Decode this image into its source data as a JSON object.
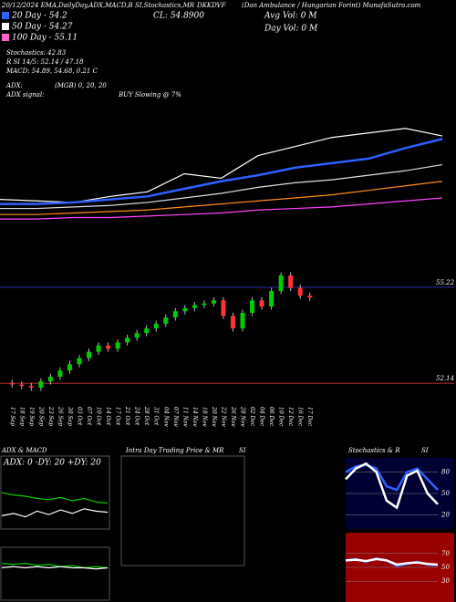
{
  "header": {
    "top_line": "20/12/2024 EMA,DailyDay,ADX,MACD,B",
    "top_mid": "SI,Stochastics,MR",
    "top_symbol": "DKKDVF",
    "top_right": "(Dan Ambulance / Hungarian Forint) MunafaSutra.com",
    "close": "CL: 54.8900",
    "avg_vol": "Avg Vol: 0 M",
    "day_vol": "Day Vol: 0 M"
  },
  "legend": [
    {
      "label": "20 Day - 54.2",
      "color": "#2f5fff"
    },
    {
      "label": "50 Day - 54.27",
      "color": "#ffffff"
    },
    {
      "label": "100 Day - 55.11",
      "color": "#ff66cc"
    }
  ],
  "stats": [
    "Stochastics: 42.83",
    "R SI 14/5: 52.14 / 47.18",
    "MACD: 54.89, 54.68, 0.21 C"
  ],
  "adx": {
    "label": "ADX:",
    "value": "(MGB) 0, 20, 20"
  },
  "signal": {
    "label": "ADX signal:",
    "value": "BUY Slowing @ 7%"
  },
  "panels": {
    "adx_title": "ADX & MACD",
    "adx_box": "ADX: 0  -DY: 20  +DY: 20",
    "intra_title": "Intra Day Trading Price & MR",
    "intra_si": "SI",
    "stoch_title": "Stochastics & R",
    "stoch_si": "SI"
  },
  "chart_data": [
    {
      "type": "line",
      "categories": [
        null,
        null,
        null,
        null,
        null,
        null,
        null,
        null,
        null,
        null,
        null,
        null,
        null
      ],
      "ylim": [
        49,
        57
      ],
      "series": [
        {
          "color": "#ffffff",
          "values": [
            50.4,
            50.35,
            50.3,
            50.5,
            50.65,
            51.25,
            51.1,
            51.85,
            52.15,
            52.45,
            52.6,
            52.75,
            52.5
          ]
        },
        {
          "color": "#2f5fff",
          "values": [
            50.25,
            50.25,
            50.3,
            50.4,
            50.5,
            50.75,
            51.0,
            51.2,
            51.45,
            51.6,
            51.75,
            52.1,
            52.4
          ]
        },
        {
          "color": "#dddddd",
          "values": [
            50.1,
            50.1,
            50.15,
            50.2,
            50.3,
            50.45,
            50.6,
            50.8,
            50.95,
            51.05,
            51.2,
            51.35,
            51.55
          ]
        },
        {
          "color": "#ff8c1a",
          "values": [
            49.9,
            49.9,
            49.95,
            50.0,
            50.05,
            50.15,
            50.25,
            50.35,
            50.45,
            50.55,
            50.7,
            50.85,
            51.0
          ]
        },
        {
          "color": "#ff44ff",
          "values": [
            49.75,
            49.75,
            49.8,
            49.8,
            49.85,
            49.9,
            49.95,
            50.05,
            50.1,
            50.15,
            50.25,
            50.35,
            50.45
          ]
        }
      ]
    },
    {
      "type": "candlestick",
      "ylim": [
        51.56,
        55.95
      ],
      "up_color": "#00cc00",
      "down_color": "#ff3333",
      "categories": [
        "17 Sep",
        "18 Sep",
        "19 Sep",
        "20 Sep",
        "23 Sep",
        "26 Sep",
        "30 Sep",
        "03 Oct",
        "07 Oct",
        "10 Oct",
        "14 Oct",
        "17 Oct",
        "21 Oct",
        "24 Oct",
        "28 Oct",
        "31 Oct",
        "04 Nov",
        "07 Nov",
        "11 Nov",
        "14 Nov",
        "18 Nov",
        "20 Nov",
        "22 Nov",
        "26 Nov",
        "28 Nov",
        "02 Dec",
        "04 Dec",
        "06 Dec",
        "10 Dec",
        "12 Dec",
        "16 Dec",
        "17 Dec"
      ],
      "open": [
        52.15,
        52.1,
        52.05,
        52.0,
        52.2,
        52.35,
        52.55,
        52.75,
        52.95,
        53.15,
        53.35,
        53.25,
        53.45,
        53.6,
        53.75,
        53.9,
        54.05,
        54.25,
        54.45,
        54.55,
        54.65,
        54.7,
        54.8,
        54.3,
        53.9,
        54.4,
        54.8,
        54.6,
        55.1,
        55.6,
        55.2,
        54.95
      ],
      "high": [
        52.25,
        52.2,
        52.15,
        52.3,
        52.45,
        52.65,
        52.85,
        53.05,
        53.25,
        53.45,
        53.45,
        53.55,
        53.7,
        53.85,
        54.0,
        54.15,
        54.35,
        54.55,
        54.65,
        54.75,
        54.8,
        54.9,
        54.9,
        54.4,
        54.5,
        54.9,
        54.9,
        55.2,
        55.7,
        55.7,
        55.3,
        55.05
      ],
      "low": [
        52.0,
        51.95,
        51.9,
        51.9,
        52.1,
        52.25,
        52.45,
        52.65,
        52.85,
        53.05,
        53.15,
        53.15,
        53.35,
        53.5,
        53.65,
        53.8,
        53.95,
        54.15,
        54.35,
        54.45,
        54.55,
        54.6,
        54.2,
        53.8,
        53.8,
        54.3,
        54.5,
        54.5,
        55.0,
        55.1,
        54.85,
        54.79
      ],
      "close": [
        52.1,
        52.05,
        52.0,
        52.2,
        52.35,
        52.55,
        52.75,
        52.95,
        53.15,
        53.35,
        53.25,
        53.45,
        53.6,
        53.75,
        53.9,
        54.05,
        54.25,
        54.45,
        54.55,
        54.65,
        54.7,
        54.8,
        54.3,
        53.9,
        54.4,
        54.8,
        54.6,
        55.1,
        55.6,
        55.2,
        54.95,
        54.89
      ],
      "levels": [
        {
          "value": 55.22,
          "label": "55.22",
          "color": "#3333cc"
        },
        {
          "value": 52.14,
          "label": "52.14",
          "color": "#cc3333"
        }
      ]
    },
    {
      "type": "line",
      "ylim": [
        0,
        50
      ],
      "categories": [
        null,
        null,
        null,
        null,
        null,
        null,
        null,
        null,
        null,
        null
      ],
      "series": [
        {
          "color": "#00cc00",
          "values": [
            30,
            28,
            27,
            25,
            24,
            26,
            23,
            25,
            22,
            21
          ]
        },
        {
          "color": "#ffffff",
          "values": [
            10,
            12,
            9,
            14,
            11,
            15,
            12,
            16,
            14,
            13
          ]
        }
      ]
    },
    {
      "type": "line",
      "ylim": [
        -1,
        1
      ],
      "categories": [
        null,
        null,
        null,
        null,
        null,
        null,
        null,
        null,
        null,
        null
      ],
      "series": [
        {
          "color": "#00cc00",
          "values": [
            0.5,
            0.45,
            0.5,
            0.4,
            0.45,
            0.35,
            0.4,
            0.3,
            0.35,
            0.3
          ]
        },
        {
          "color": "#ffffff",
          "values": [
            0.3,
            0.35,
            0.3,
            0.35,
            0.3,
            0.35,
            0.3,
            0.3,
            0.25,
            0.3
          ]
        }
      ]
    },
    {
      "type": "line",
      "ylim": [
        0,
        100
      ],
      "yticks": [
        80,
        50,
        20
      ],
      "bg": "#000033",
      "categories": [
        null,
        null,
        null,
        null,
        null,
        null,
        null,
        null,
        null,
        null
      ],
      "series": [
        {
          "color": "#2f5fff",
          "values": [
            80,
            88,
            90,
            85,
            60,
            55,
            80,
            85,
            70,
            55
          ]
        },
        {
          "color": "#ffffff",
          "values": [
            70,
            85,
            92,
            80,
            40,
            30,
            75,
            82,
            50,
            35
          ]
        }
      ]
    },
    {
      "type": "line",
      "ylim": [
        0,
        100
      ],
      "yticks": [
        70,
        50,
        30
      ],
      "bg": "#990000",
      "categories": [
        null,
        null,
        null,
        null,
        null,
        null,
        null,
        null,
        null,
        null
      ],
      "series": [
        {
          "color": "#2f5fff",
          "values": [
            60,
            62,
            58,
            63,
            60,
            52,
            55,
            58,
            54,
            53
          ]
        },
        {
          "color": "#ffffff",
          "values": [
            60,
            61,
            59,
            62,
            60,
            54,
            56,
            57,
            55,
            54
          ]
        }
      ]
    }
  ]
}
